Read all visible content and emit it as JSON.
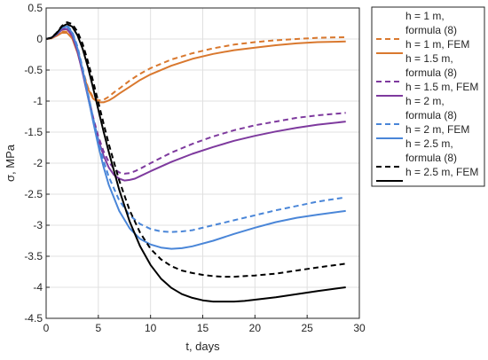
{
  "chart_data": {
    "type": "line",
    "title": "",
    "xlabel": "t, days",
    "ylabel": "σ, MPa",
    "xlim": [
      0,
      30
    ],
    "ylim": [
      -4.5,
      0.5
    ],
    "xticks": [
      0,
      5,
      10,
      15,
      20,
      25,
      30
    ],
    "yticks": [
      0.5,
      0,
      -0.5,
      -1,
      -1.5,
      -2,
      -2.5,
      -3,
      -3.5,
      -4,
      -4.5
    ],
    "xtick_labels": [
      "0",
      "5",
      "10",
      "15",
      "20",
      "25",
      "30"
    ],
    "ytick_labels": [
      "0.5",
      "0",
      "-0.5",
      "-1",
      "-1.5",
      "-2",
      "-2.5",
      "-3",
      "-3.5",
      "-4",
      "-4.5"
    ],
    "grid": true,
    "legend_position": "outside-right",
    "series": [
      {
        "name": "h = 1 m, formula (8)",
        "legend_lines": [
          "h = 1 m,",
          "formula (8)"
        ],
        "color": "#D9782E",
        "dash": true,
        "x": [
          0,
          0.5,
          1,
          1.5,
          2,
          2.5,
          3,
          3.5,
          4,
          4.5,
          5,
          5.5,
          6,
          6.5,
          7,
          8,
          9,
          10,
          12,
          14,
          16,
          18,
          20,
          22,
          24,
          26,
          28.7
        ],
        "y": [
          0,
          0.01,
          0.06,
          0.12,
          0.12,
          0.03,
          -0.2,
          -0.5,
          -0.78,
          -0.94,
          -0.99,
          -0.98,
          -0.93,
          -0.86,
          -0.8,
          -0.67,
          -0.56,
          -0.47,
          -0.33,
          -0.23,
          -0.15,
          -0.09,
          -0.05,
          -0.02,
          0,
          0.02,
          0.03
        ]
      },
      {
        "name": "h = 1 m, FEM",
        "legend_lines": [
          "h = 1 m, FEM"
        ],
        "color": "#D9782E",
        "dash": false,
        "x": [
          0,
          0.5,
          1,
          1.5,
          2,
          2.5,
          3,
          3.5,
          4,
          4.5,
          5,
          5.5,
          6,
          6.5,
          7,
          8,
          9,
          10,
          12,
          14,
          16,
          18,
          20,
          22,
          24,
          26,
          28.7
        ],
        "y": [
          0,
          0.01,
          0.05,
          0.1,
          0.1,
          0.01,
          -0.22,
          -0.52,
          -0.8,
          -0.96,
          -1.02,
          -1.02,
          -0.99,
          -0.94,
          -0.88,
          -0.77,
          -0.66,
          -0.57,
          -0.43,
          -0.32,
          -0.24,
          -0.18,
          -0.14,
          -0.1,
          -0.07,
          -0.05,
          -0.04
        ]
      },
      {
        "name": "h = 1.5 m, formula (8)",
        "legend_lines": [
          "h = 1.5 m,",
          "formula (8)"
        ],
        "color": "#7E3A9E",
        "dash": true,
        "x": [
          0,
          0.5,
          1,
          1.5,
          2,
          2.5,
          3,
          3.5,
          4,
          4.5,
          5,
          5.5,
          6,
          6.5,
          7,
          7.5,
          8,
          8.5,
          9,
          10,
          12,
          14,
          16,
          18,
          20,
          22,
          24,
          26,
          28.7
        ],
        "y": [
          0,
          0.02,
          0.08,
          0.17,
          0.18,
          0.08,
          -0.17,
          -0.52,
          -0.9,
          -1.26,
          -1.57,
          -1.81,
          -1.98,
          -2.09,
          -2.15,
          -2.17,
          -2.16,
          -2.13,
          -2.09,
          -2.0,
          -1.83,
          -1.69,
          -1.57,
          -1.47,
          -1.39,
          -1.33,
          -1.27,
          -1.23,
          -1.19
        ]
      },
      {
        "name": "h = 1.5 m, FEM",
        "legend_lines": [
          "h = 1.5 m, FEM"
        ],
        "color": "#7E3A9E",
        "dash": false,
        "x": [
          0,
          0.5,
          1,
          1.5,
          2,
          2.5,
          3,
          3.5,
          4,
          4.5,
          5,
          5.5,
          6,
          6.5,
          7,
          7.5,
          8,
          8.5,
          9,
          10,
          12,
          14,
          16,
          18,
          20,
          22,
          24,
          26,
          28.7
        ],
        "y": [
          0,
          0.02,
          0.07,
          0.15,
          0.16,
          0.05,
          -0.2,
          -0.55,
          -0.93,
          -1.3,
          -1.62,
          -1.88,
          -2.07,
          -2.19,
          -2.25,
          -2.28,
          -2.27,
          -2.25,
          -2.21,
          -2.13,
          -1.98,
          -1.85,
          -1.74,
          -1.64,
          -1.56,
          -1.49,
          -1.43,
          -1.38,
          -1.33
        ]
      },
      {
        "name": "h = 2 m, formula (8)",
        "legend_lines": [
          "h = 2 m,",
          "formula (8)"
        ],
        "color": "#4A86D8",
        "dash": true,
        "x": [
          0,
          0.5,
          1,
          1.5,
          2,
          2.5,
          3,
          3.5,
          4,
          4.5,
          5,
          5.5,
          6,
          7,
          8,
          9,
          10,
          11,
          12,
          13,
          14,
          16,
          18,
          20,
          22,
          24,
          26,
          28.7
        ],
        "y": [
          0,
          0.02,
          0.1,
          0.2,
          0.22,
          0.12,
          -0.12,
          -0.47,
          -0.87,
          -1.27,
          -1.64,
          -1.96,
          -2.22,
          -2.6,
          -2.84,
          -2.98,
          -3.06,
          -3.1,
          -3.11,
          -3.1,
          -3.08,
          -3.0,
          -2.92,
          -2.84,
          -2.76,
          -2.69,
          -2.62,
          -2.55
        ]
      },
      {
        "name": "h = 2 m, FEM",
        "legend_lines": [
          "h = 2 m, FEM"
        ],
        "color": "#4A86D8",
        "dash": false,
        "x": [
          0,
          0.5,
          1,
          1.5,
          2,
          2.5,
          3,
          3.5,
          4,
          4.5,
          5,
          5.5,
          6,
          7,
          8,
          9,
          10,
          11,
          12,
          13,
          14,
          16,
          18,
          20,
          22,
          24,
          26,
          28.7
        ],
        "y": [
          0,
          0.02,
          0.08,
          0.18,
          0.2,
          0.1,
          -0.15,
          -0.5,
          -0.92,
          -1.33,
          -1.72,
          -2.06,
          -2.35,
          -2.77,
          -3.05,
          -3.22,
          -3.31,
          -3.36,
          -3.38,
          -3.37,
          -3.34,
          -3.25,
          -3.14,
          -3.04,
          -2.95,
          -2.88,
          -2.83,
          -2.77
        ]
      },
      {
        "name": "h = 2.5 m, formula (8)",
        "legend_lines": [
          "h = 2.5 m,",
          "formula (8)"
        ],
        "color": "#000000",
        "dash": true,
        "x": [
          0,
          0.5,
          1,
          1.5,
          2,
          2.5,
          3,
          3.5,
          4,
          4.5,
          5,
          5.5,
          6,
          7,
          8,
          9,
          10,
          11,
          12,
          13,
          14,
          15,
          16,
          17,
          18,
          19,
          20,
          22,
          24,
          26,
          28.7
        ],
        "y": [
          0,
          0.02,
          0.1,
          0.21,
          0.27,
          0.24,
          0.12,
          -0.08,
          -0.36,
          -0.68,
          -1.02,
          -1.36,
          -1.69,
          -2.28,
          -2.76,
          -3.12,
          -3.38,
          -3.55,
          -3.66,
          -3.73,
          -3.77,
          -3.8,
          -3.82,
          -3.83,
          -3.83,
          -3.82,
          -3.81,
          -3.78,
          -3.73,
          -3.68,
          -3.62
        ]
      },
      {
        "name": "h = 2.5 m, FEM",
        "legend_lines": [
          "h = 2.5 m, FEM"
        ],
        "color": "#000000",
        "dash": false,
        "x": [
          0,
          0.5,
          1,
          1.5,
          2,
          2.5,
          3,
          3.5,
          4,
          4.5,
          5,
          5.5,
          6,
          7,
          8,
          9,
          10,
          11,
          12,
          13,
          14,
          15,
          16,
          17,
          18,
          19,
          20,
          22,
          24,
          26,
          28.7
        ],
        "y": [
          0,
          0.02,
          0.09,
          0.2,
          0.24,
          0.2,
          0.06,
          -0.16,
          -0.45,
          -0.79,
          -1.14,
          -1.49,
          -1.82,
          -2.43,
          -2.94,
          -3.34,
          -3.64,
          -3.86,
          -4.01,
          -4.11,
          -4.17,
          -4.21,
          -4.23,
          -4.23,
          -4.23,
          -4.22,
          -4.2,
          -4.16,
          -4.11,
          -4.06,
          -4.0
        ]
      }
    ]
  }
}
